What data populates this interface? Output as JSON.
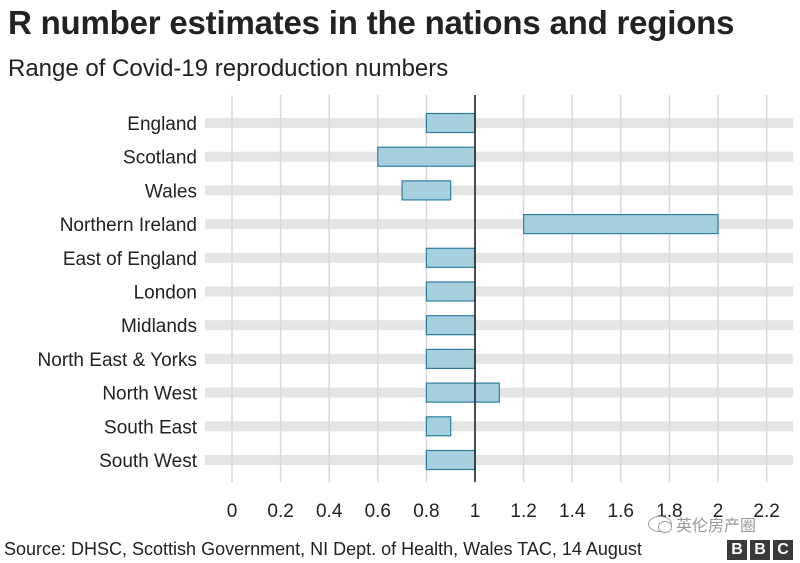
{
  "title": "R number estimates in the nations and regions",
  "subtitle": "Range of Covid-19 reproduction numbers",
  "source": "Source: DHSC, Scottish Government, NI Dept. of Health, Wales TAC, 14 August",
  "logo": [
    "B",
    "B",
    "C"
  ],
  "watermark": "英伦房产圈",
  "colors": {
    "bar_fill": "#a6d0dd",
    "bar_stroke": "#2e7f9e",
    "row_band": "#e5e5e5",
    "gridline": "#d9d9d9",
    "reference_line": "#222222"
  },
  "chart_data": {
    "type": "range-bar",
    "title": "R number estimates in the nations and regions",
    "subtitle": "Range of Covid-19 reproduction numbers",
    "xlim": [
      0,
      2.3
    ],
    "xticks": [
      0,
      0.2,
      0.4,
      0.6,
      0.8,
      1,
      1.2,
      1.4,
      1.6,
      1.8,
      2,
      2.2
    ],
    "tick_labels": [
      "0",
      "0.2",
      "0.4",
      "0.6",
      "0.8",
      "1",
      "1.2",
      "1.4",
      "1.6",
      "1.8",
      "2",
      "2.2"
    ],
    "reference_line": 1,
    "grid": true,
    "categories": [
      "England",
      "Scotland",
      "Wales",
      "Northern Ireland",
      "East of England",
      "London",
      "Midlands",
      "North East & Yorks",
      "North West",
      "South East",
      "South West"
    ],
    "ranges": [
      [
        0.8,
        1.0
      ],
      [
        0.6,
        1.0
      ],
      [
        0.7,
        0.9
      ],
      [
        1.2,
        2.0
      ],
      [
        0.8,
        1.0
      ],
      [
        0.8,
        1.0
      ],
      [
        0.8,
        1.0
      ],
      [
        0.8,
        1.0
      ],
      [
        0.8,
        1.1
      ],
      [
        0.8,
        0.9
      ],
      [
        0.8,
        1.0
      ]
    ]
  }
}
